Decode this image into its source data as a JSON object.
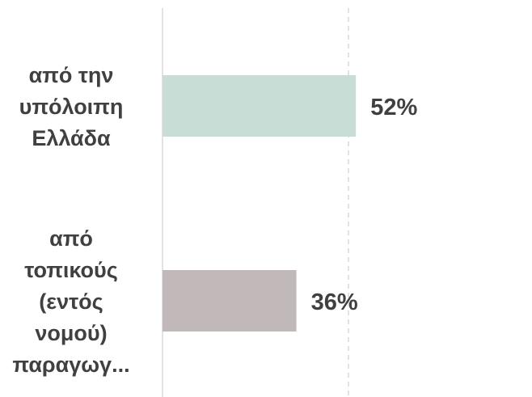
{
  "chart_data": {
    "type": "bar",
    "orientation": "horizontal",
    "categories": [
      "από την υπόλοιπη Ελλάδα",
      "από τοπικούς (εντός νομού) παραγωγ..."
    ],
    "category_lines": [
      [
        "από την",
        "υπόλοιπη",
        "Ελλάδα"
      ],
      [
        "από",
        "τοπικούς",
        "(εντός",
        "νομού)",
        "παραγωγ..."
      ]
    ],
    "values": [
      52,
      36
    ],
    "data_labels": [
      "52%",
      "36%"
    ],
    "colors": [
      "#c8ddd6",
      "#c1b9b9"
    ],
    "xlim": [
      0,
      100
    ],
    "grid": true,
    "legend": "none",
    "title": "",
    "xlabel": "",
    "ylabel": ""
  }
}
